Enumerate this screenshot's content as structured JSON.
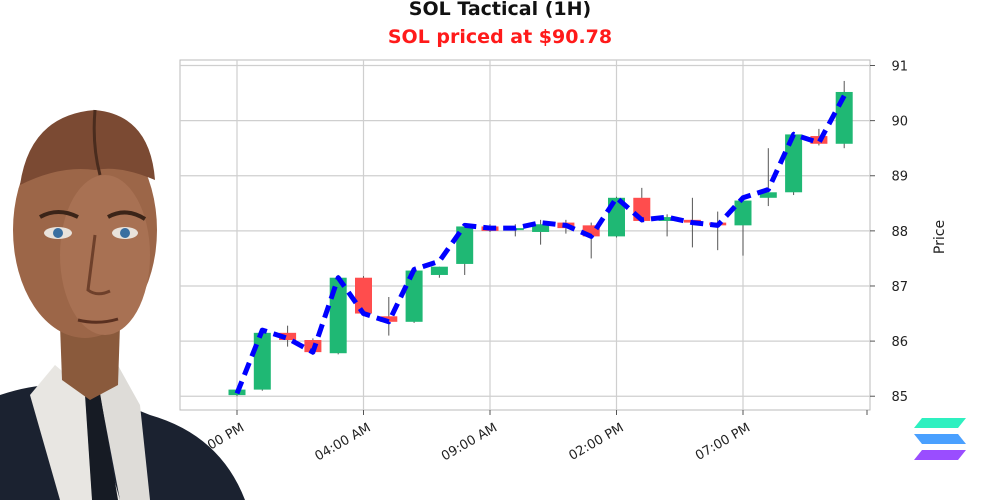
{
  "header": {
    "title": "SOL Tactical (1H)",
    "subtitle": "SOL priced at $90.78",
    "subtitle_color": "#ff1a1a"
  },
  "colors": {
    "up": "#1fb874",
    "down": "#ff4d4d",
    "line": "#0000ff",
    "grid": "#cfcfcf",
    "logo_top": "#2ef0c0",
    "logo_mid": "#4aa0ff",
    "logo_bottom": "#9a4dff"
  },
  "icons": {
    "logo": "solana-logo-icon",
    "figure": "suited-android-man-illustration"
  },
  "chart_data": {
    "type": "candlestick",
    "ylabel": "Price",
    "ylim": [
      84.75,
      91.1
    ],
    "yticks": [
      85,
      86,
      87,
      88,
      89,
      90,
      91
    ],
    "xticks": [
      {
        "index": 0,
        "label": "11:00 PM"
      },
      {
        "index": 5,
        "label": "04:00 AM"
      },
      {
        "index": 10,
        "label": "09:00 AM"
      },
      {
        "index": 15,
        "label": "02:00 PM"
      },
      {
        "index": 20,
        "label": "07:00 PM"
      }
    ],
    "grid": true,
    "candles": [
      {
        "o": 85.02,
        "h": 85.12,
        "l": 85.0,
        "c": 85.12
      },
      {
        "o": 85.12,
        "h": 86.22,
        "l": 85.1,
        "c": 86.15
      },
      {
        "o": 86.15,
        "h": 86.28,
        "l": 85.9,
        "c": 86.02
      },
      {
        "o": 86.02,
        "h": 86.05,
        "l": 85.75,
        "c": 85.8
      },
      {
        "o": 85.78,
        "h": 87.2,
        "l": 85.76,
        "c": 87.15
      },
      {
        "o": 87.15,
        "h": 87.18,
        "l": 86.45,
        "c": 86.5
      },
      {
        "o": 86.45,
        "h": 86.8,
        "l": 86.1,
        "c": 86.35
      },
      {
        "o": 86.35,
        "h": 87.3,
        "l": 86.33,
        "c": 87.28
      },
      {
        "o": 87.2,
        "h": 87.35,
        "l": 87.15,
        "c": 87.35
      },
      {
        "o": 87.4,
        "h": 88.1,
        "l": 87.2,
        "c": 88.08
      },
      {
        "o": 88.08,
        "h": 88.12,
        "l": 87.98,
        "c": 88.0
      },
      {
        "o": 88.02,
        "h": 88.12,
        "l": 87.9,
        "c": 88.05
      },
      {
        "o": 87.98,
        "h": 88.2,
        "l": 87.75,
        "c": 88.12
      },
      {
        "o": 88.15,
        "h": 88.2,
        "l": 87.95,
        "c": 88.05
      },
      {
        "o": 88.1,
        "h": 88.15,
        "l": 87.5,
        "c": 87.9
      },
      {
        "o": 87.9,
        "h": 88.62,
        "l": 87.88,
        "c": 88.6
      },
      {
        "o": 88.6,
        "h": 88.78,
        "l": 88.15,
        "c": 88.18
      },
      {
        "o": 88.18,
        "h": 88.3,
        "l": 87.9,
        "c": 88.25
      },
      {
        "o": 88.2,
        "h": 88.6,
        "l": 87.7,
        "c": 88.15
      },
      {
        "o": 88.15,
        "h": 88.35,
        "l": 87.65,
        "c": 88.1
      },
      {
        "o": 88.1,
        "h": 88.55,
        "l": 87.55,
        "c": 88.55
      },
      {
        "o": 88.6,
        "h": 89.5,
        "l": 88.45,
        "c": 88.7
      },
      {
        "o": 88.7,
        "h": 89.8,
        "l": 88.65,
        "c": 89.75
      },
      {
        "o": 89.72,
        "h": 89.85,
        "l": 89.55,
        "c": 89.58
      },
      {
        "o": 89.58,
        "h": 90.72,
        "l": 89.5,
        "c": 90.52
      }
    ],
    "line": [
      85.05,
      86.2,
      86.05,
      85.8,
      87.15,
      86.5,
      86.35,
      87.3,
      87.45,
      88.1,
      88.05,
      88.05,
      88.15,
      88.1,
      87.9,
      88.6,
      88.2,
      88.25,
      88.15,
      88.1,
      88.6,
      88.75,
      89.75,
      89.6,
      90.45
    ]
  }
}
